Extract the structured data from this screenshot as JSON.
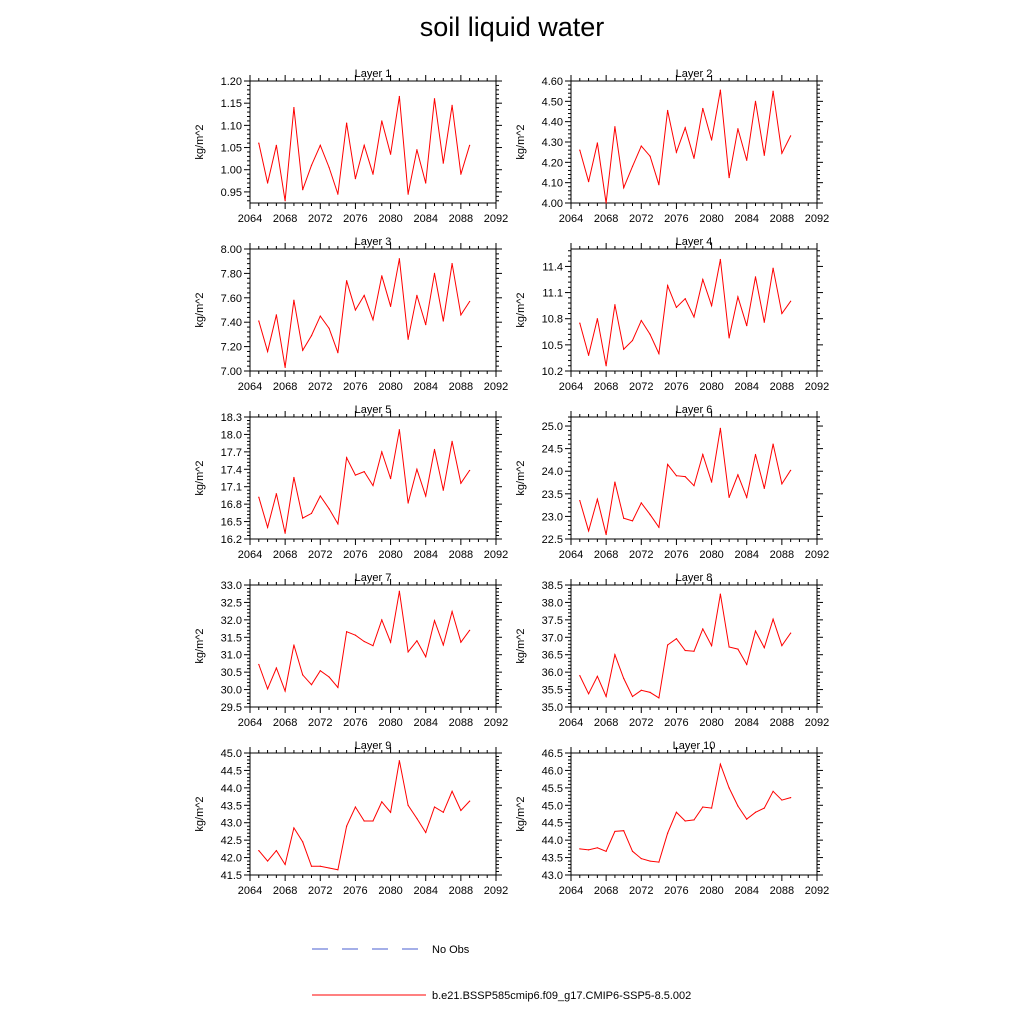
{
  "title": "soil liquid water",
  "colors": {
    "model_line": "#ff0000",
    "obs_line": "#4a5fd0",
    "axis": "#000000",
    "background": "#ffffff"
  },
  "legend": {
    "obs_label": "No Obs",
    "model_label": "b.e21.BSSP585cmip6.f09_g17.CMIP6-SSP5-8.5.002"
  },
  "chart_data": [
    {
      "type": "line",
      "title": "Layer 1",
      "ylabel": "kg/m^2",
      "xlim": [
        2064,
        2092
      ],
      "xticks": [
        2064,
        2068,
        2072,
        2076,
        2080,
        2084,
        2088,
        2092
      ],
      "ylim": [
        0.925,
        1.2
      ],
      "yticks": [
        0.95,
        1.0,
        1.05,
        1.1,
        1.15,
        1.2
      ],
      "ydec": 2,
      "x": [
        2065,
        2066,
        2067,
        2068,
        2069,
        2070,
        2071,
        2072,
        2073,
        2074,
        2075,
        2076,
        2077,
        2078,
        2079,
        2080,
        2081,
        2082,
        2083,
        2084,
        2085,
        2086,
        2087,
        2088,
        2089
      ],
      "series": [
        {
          "values": [
            1.06,
            0.97,
            1.055,
            0.93,
            1.14,
            0.955,
            1.01,
            1.055,
            1.005,
            0.945,
            1.105,
            0.98,
            1.055,
            0.99,
            1.11,
            1.035,
            1.165,
            0.945,
            1.045,
            0.97,
            1.16,
            1.015,
            1.145,
            0.99,
            1.055
          ]
        }
      ]
    },
    {
      "type": "line",
      "title": "Layer 2",
      "ylabel": "kg/m^2",
      "xlim": [
        2064,
        2092
      ],
      "xticks": [
        2064,
        2068,
        2072,
        2076,
        2080,
        2084,
        2088,
        2092
      ],
      "ylim": [
        4.0,
        4.6
      ],
      "yticks": [
        4.0,
        4.1,
        4.2,
        4.3,
        4.4,
        4.5,
        4.6
      ],
      "ydec": 2,
      "x": [
        2065,
        2066,
        2067,
        2068,
        2069,
        2070,
        2071,
        2072,
        2073,
        2074,
        2075,
        2076,
        2077,
        2078,
        2079,
        2080,
        2081,
        2082,
        2083,
        2084,
        2085,
        2086,
        2087,
        2088,
        2089
      ],
      "series": [
        {
          "values": [
            4.26,
            4.105,
            4.295,
            4.0,
            4.375,
            4.075,
            4.18,
            4.28,
            4.23,
            4.09,
            4.455,
            4.25,
            4.37,
            4.22,
            4.465,
            4.31,
            4.555,
            4.125,
            4.365,
            4.21,
            4.5,
            4.235,
            4.55,
            4.245,
            4.33
          ]
        }
      ]
    },
    {
      "type": "line",
      "title": "Layer 3",
      "ylabel": "kg/m^2",
      "xlim": [
        2064,
        2092
      ],
      "xticks": [
        2064,
        2068,
        2072,
        2076,
        2080,
        2084,
        2088,
        2092
      ],
      "ylim": [
        7.0,
        8.0
      ],
      "yticks": [
        7.0,
        7.2,
        7.4,
        7.6,
        7.8,
        8.0
      ],
      "ydec": 2,
      "x": [
        2065,
        2066,
        2067,
        2068,
        2069,
        2070,
        2071,
        2072,
        2073,
        2074,
        2075,
        2076,
        2077,
        2078,
        2079,
        2080,
        2081,
        2082,
        2083,
        2084,
        2085,
        2086,
        2087,
        2088,
        2089
      ],
      "series": [
        {
          "values": [
            7.41,
            7.16,
            7.46,
            7.03,
            7.58,
            7.17,
            7.29,
            7.45,
            7.35,
            7.15,
            7.74,
            7.5,
            7.62,
            7.42,
            7.78,
            7.53,
            7.92,
            7.26,
            7.62,
            7.38,
            7.8,
            7.41,
            7.88,
            7.46,
            7.57
          ]
        }
      ]
    },
    {
      "type": "line",
      "title": "Layer 4",
      "ylabel": "kg/m^2",
      "xlim": [
        2064,
        2092
      ],
      "xticks": [
        2064,
        2068,
        2072,
        2076,
        2080,
        2084,
        2088,
        2092
      ],
      "ylim": [
        10.2,
        11.6
      ],
      "yticks": [
        10.2,
        10.5,
        10.8,
        11.1,
        11.4
      ],
      "ydec": 1,
      "x": [
        2065,
        2066,
        2067,
        2068,
        2069,
        2070,
        2071,
        2072,
        2073,
        2074,
        2075,
        2076,
        2077,
        2078,
        2079,
        2080,
        2081,
        2082,
        2083,
        2084,
        2085,
        2086,
        2087,
        2088,
        2089
      ],
      "series": [
        {
          "values": [
            10.75,
            10.38,
            10.8,
            10.26,
            10.96,
            10.45,
            10.55,
            10.78,
            10.62,
            10.4,
            11.18,
            10.93,
            11.03,
            10.82,
            11.25,
            10.95,
            11.48,
            10.58,
            11.05,
            10.72,
            11.28,
            10.76,
            11.38,
            10.86,
            11.0
          ]
        }
      ]
    },
    {
      "type": "line",
      "title": "Layer 5",
      "ylabel": "kg/m^2",
      "xlim": [
        2064,
        2092
      ],
      "xticks": [
        2064,
        2068,
        2072,
        2076,
        2080,
        2084,
        2088,
        2092
      ],
      "ylim": [
        16.2,
        18.3
      ],
      "yticks": [
        16.2,
        16.5,
        16.8,
        17.1,
        17.4,
        17.7,
        18.0,
        18.3
      ],
      "ydec": 1,
      "x": [
        2065,
        2066,
        2067,
        2068,
        2069,
        2070,
        2071,
        2072,
        2073,
        2074,
        2075,
        2076,
        2077,
        2078,
        2079,
        2080,
        2081,
        2082,
        2083,
        2084,
        2085,
        2086,
        2087,
        2088,
        2089
      ],
      "series": [
        {
          "values": [
            16.92,
            16.4,
            16.98,
            16.3,
            17.26,
            16.56,
            16.64,
            16.94,
            16.72,
            16.46,
            17.6,
            17.3,
            17.36,
            17.12,
            17.7,
            17.24,
            18.08,
            16.82,
            17.4,
            16.94,
            17.74,
            17.04,
            17.88,
            17.16,
            17.38
          ]
        }
      ]
    },
    {
      "type": "line",
      "title": "Layer 6",
      "ylabel": "kg/m^2",
      "xlim": [
        2064,
        2092
      ],
      "xticks": [
        2064,
        2068,
        2072,
        2076,
        2080,
        2084,
        2088,
        2092
      ],
      "ylim": [
        22.5,
        25.2
      ],
      "yticks": [
        22.5,
        23.0,
        23.5,
        24.0,
        24.5,
        25.0
      ],
      "ydec": 1,
      "x": [
        2065,
        2066,
        2067,
        2068,
        2069,
        2070,
        2071,
        2072,
        2073,
        2074,
        2075,
        2076,
        2077,
        2078,
        2079,
        2080,
        2081,
        2082,
        2083,
        2084,
        2085,
        2086,
        2087,
        2088,
        2089
      ],
      "series": [
        {
          "values": [
            23.35,
            22.68,
            23.38,
            22.6,
            23.76,
            22.96,
            22.9,
            23.3,
            23.04,
            22.76,
            24.15,
            23.9,
            23.88,
            23.68,
            24.37,
            23.76,
            24.95,
            23.42,
            23.92,
            23.42,
            24.37,
            23.62,
            24.6,
            23.72,
            24.02
          ]
        }
      ]
    },
    {
      "type": "line",
      "title": "Layer 7",
      "ylabel": "kg/m^2",
      "xlim": [
        2064,
        2092
      ],
      "xticks": [
        2064,
        2068,
        2072,
        2076,
        2080,
        2084,
        2088,
        2092
      ],
      "ylim": [
        29.5,
        33.0
      ],
      "yticks": [
        29.5,
        30.0,
        30.5,
        31.0,
        31.5,
        32.0,
        32.5,
        33.0
      ],
      "ydec": 1,
      "x": [
        2065,
        2066,
        2067,
        2068,
        2069,
        2070,
        2071,
        2072,
        2073,
        2074,
        2075,
        2076,
        2077,
        2078,
        2079,
        2080,
        2081,
        2082,
        2083,
        2084,
        2085,
        2086,
        2087,
        2088,
        2089
      ],
      "series": [
        {
          "values": [
            30.72,
            30.02,
            30.62,
            29.96,
            31.28,
            30.42,
            30.14,
            30.54,
            30.36,
            30.06,
            31.66,
            31.56,
            31.38,
            31.26,
            32.0,
            31.36,
            32.82,
            31.08,
            31.4,
            30.94,
            31.98,
            31.28,
            32.24,
            31.36,
            31.7
          ]
        }
      ]
    },
    {
      "type": "line",
      "title": "Layer 8",
      "ylabel": "kg/m^2",
      "xlim": [
        2064,
        2092
      ],
      "xticks": [
        2064,
        2068,
        2072,
        2076,
        2080,
        2084,
        2088,
        2092
      ],
      "ylim": [
        35.0,
        38.5
      ],
      "yticks": [
        35.0,
        35.5,
        36.0,
        36.5,
        37.0,
        37.5,
        38.0,
        38.5
      ],
      "ydec": 1,
      "x": [
        2065,
        2066,
        2067,
        2068,
        2069,
        2070,
        2071,
        2072,
        2073,
        2074,
        2075,
        2076,
        2077,
        2078,
        2079,
        2080,
        2081,
        2082,
        2083,
        2084,
        2085,
        2086,
        2087,
        2088,
        2089
      ],
      "series": [
        {
          "values": [
            35.9,
            35.38,
            35.88,
            35.3,
            36.5,
            35.82,
            35.3,
            35.48,
            35.42,
            35.26,
            36.78,
            36.96,
            36.62,
            36.6,
            37.24,
            36.76,
            38.24,
            36.72,
            36.66,
            36.22,
            37.18,
            36.7,
            37.52,
            36.76,
            37.12
          ]
        }
      ]
    },
    {
      "type": "line",
      "title": "Layer 9",
      "ylabel": "kg/m^2",
      "xlim": [
        2064,
        2092
      ],
      "xticks": [
        2064,
        2068,
        2072,
        2076,
        2080,
        2084,
        2088,
        2092
      ],
      "ylim": [
        41.5,
        45.0
      ],
      "yticks": [
        41.5,
        42.0,
        42.5,
        43.0,
        43.5,
        44.0,
        44.5,
        45.0
      ],
      "ydec": 1,
      "x": [
        2065,
        2066,
        2067,
        2068,
        2069,
        2070,
        2071,
        2072,
        2073,
        2074,
        2075,
        2076,
        2077,
        2078,
        2079,
        2080,
        2081,
        2082,
        2083,
        2084,
        2085,
        2086,
        2087,
        2088,
        2089
      ],
      "series": [
        {
          "values": [
            42.2,
            41.9,
            42.2,
            41.8,
            42.85,
            42.45,
            41.75,
            41.75,
            41.7,
            41.65,
            42.9,
            43.45,
            43.05,
            43.05,
            43.6,
            43.3,
            44.78,
            43.5,
            43.12,
            42.72,
            43.45,
            43.3,
            43.9,
            43.35,
            43.62
          ]
        }
      ]
    },
    {
      "type": "line",
      "title": "Layer 10",
      "ylabel": "kg/m^2",
      "xlim": [
        2064,
        2092
      ],
      "xticks": [
        2064,
        2068,
        2072,
        2076,
        2080,
        2084,
        2088,
        2092
      ],
      "ylim": [
        43.0,
        46.5
      ],
      "yticks": [
        43.0,
        43.5,
        44.0,
        44.5,
        45.0,
        45.5,
        46.0,
        46.5
      ],
      "ydec": 1,
      "x": [
        2065,
        2066,
        2067,
        2068,
        2069,
        2070,
        2071,
        2072,
        2073,
        2074,
        2075,
        2076,
        2077,
        2078,
        2079,
        2080,
        2081,
        2082,
        2083,
        2084,
        2085,
        2086,
        2087,
        2088,
        2089
      ],
      "series": [
        {
          "values": [
            43.75,
            43.72,
            43.78,
            43.68,
            44.25,
            44.27,
            43.68,
            43.47,
            43.4,
            43.37,
            44.2,
            44.8,
            44.55,
            44.58,
            44.95,
            44.92,
            46.18,
            45.5,
            44.98,
            44.6,
            44.8,
            44.92,
            45.4,
            45.15,
            45.22
          ]
        }
      ]
    }
  ]
}
